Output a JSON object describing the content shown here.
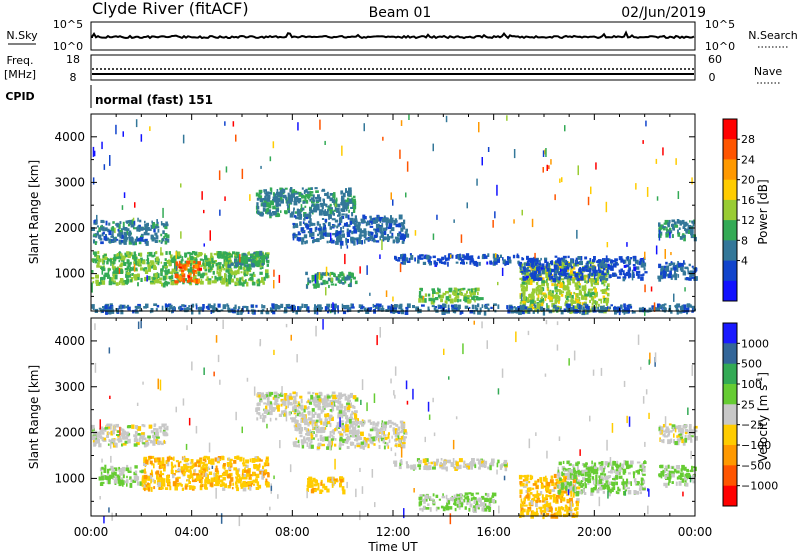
{
  "header": {
    "station": "Clyde River (fitACF)",
    "beam": "Beam 01",
    "date": "02/Jun/2019"
  },
  "panels": {
    "noise": {
      "left_label": "N.Sky",
      "right_label": "N.Search",
      "left_ticks": [
        "10^5",
        "10^0"
      ],
      "right_ticks": [
        "10^5",
        "10^0"
      ]
    },
    "freq": {
      "left_label_1": "Freq.",
      "left_label_2": "[MHz]",
      "right_label": "Nave",
      "left_ticks": [
        "18",
        "8"
      ],
      "right_ticks": [
        "60",
        "0"
      ]
    },
    "cpid": {
      "label": "CPID",
      "value": "normal (fast) 151"
    }
  },
  "x_axis": {
    "label": "Time UT",
    "ticks": [
      "00:00",
      "04:00",
      "08:00",
      "12:00",
      "16:00",
      "20:00",
      "00:00"
    ]
  },
  "power_colorbar": {
    "label": "Power [dB]",
    "ticks": [
      "28",
      "24",
      "20",
      "16",
      "12",
      "8",
      "4"
    ],
    "colors": [
      "#ff0000",
      "#ff5500",
      "#ff9900",
      "#ffcc00",
      "#99cc33",
      "#33aa55",
      "#337799",
      "#1144cc",
      "#1111ff"
    ]
  },
  "velocity_colorbar": {
    "label": "Velocity [m s",
    "label_sup": "-1",
    "label_close": "]",
    "ticks": [
      "1000",
      "500",
      "100",
      "25",
      "−25",
      "−100",
      "−500",
      "−1000"
    ],
    "colors": [
      "#1a1aff",
      "#336699",
      "#33aa55",
      "#66cc33",
      "#c8c8c8",
      "#ffcc00",
      "#ff9900",
      "#ff5500",
      "#ff0000"
    ]
  },
  "chart_data": [
    {
      "type": "heatmap",
      "name_from_colorbar": "Power [dB]",
      "ylabel": "Slant Range [km]",
      "xlabel": "Time UT",
      "xlim": [
        0,
        24
      ],
      "ylim": [
        180,
        4500
      ],
      "yticks": [
        1000,
        2000,
        3000,
        4000
      ],
      "color_range": [
        0,
        32
      ],
      "regions": [
        {
          "t0": 0.0,
          "t1": 3.0,
          "r0": 1700,
          "r1": 2200,
          "value": 9
        },
        {
          "t0": 0.0,
          "t1": 7.0,
          "r0": 800,
          "r1": 1500,
          "value": 14
        },
        {
          "t0": 3.3,
          "t1": 4.3,
          "r0": 850,
          "r1": 1300,
          "value": 26
        },
        {
          "t0": 5.0,
          "t1": 7.0,
          "r0": 1150,
          "r1": 1500,
          "value": 12
        },
        {
          "t0": 6.5,
          "t1": 10.5,
          "r0": 2300,
          "r1": 2900,
          "value": 10
        },
        {
          "t0": 8.5,
          "t1": 10.5,
          "r0": 750,
          "r1": 1050,
          "value": 12
        },
        {
          "t0": 8.0,
          "t1": 12.5,
          "r0": 1700,
          "r1": 2300,
          "value": 8
        },
        {
          "t0": 12.0,
          "t1": 17.0,
          "r0": 1250,
          "r1": 1450,
          "value": 6
        },
        {
          "t0": 13.0,
          "t1": 15.5,
          "r0": 400,
          "r1": 700,
          "value": 14
        },
        {
          "t0": 17.0,
          "t1": 20.5,
          "r0": 200,
          "r1": 1300,
          "value": 16
        },
        {
          "t0": 17.0,
          "t1": 22.0,
          "r0": 900,
          "r1": 1400,
          "value": 6
        },
        {
          "t0": 22.5,
          "t1": 24.0,
          "r0": 1800,
          "r1": 2200,
          "value": 10
        },
        {
          "t0": 22.5,
          "t1": 24.0,
          "r0": 900,
          "r1": 1300,
          "value": 8
        },
        {
          "t0": 0.0,
          "t1": 24.0,
          "r0": 180,
          "r1": 350,
          "value": 8
        }
      ]
    },
    {
      "type": "heatmap",
      "name_from_colorbar": "Velocity [m s-1]",
      "ylabel": "Slant Range [km]",
      "xlabel": "Time UT",
      "xlim": [
        0,
        24
      ],
      "ylim": [
        180,
        4500
      ],
      "yticks": [
        1000,
        2000,
        3000,
        4000
      ],
      "color_range": [
        -1000,
        1000
      ],
      "regions": [
        {
          "t0": 0.0,
          "t1": 3.0,
          "r0": 1750,
          "r1": 2200,
          "value": 0
        },
        {
          "t0": 0.3,
          "t1": 2.0,
          "r0": 900,
          "r1": 1300,
          "value": 150
        },
        {
          "t0": 2.0,
          "t1": 7.0,
          "r0": 800,
          "r1": 1500,
          "value": -250
        },
        {
          "t0": 6.5,
          "t1": 10.5,
          "r0": 2300,
          "r1": 2900,
          "value": 0
        },
        {
          "t0": 8.5,
          "t1": 10.0,
          "r0": 750,
          "r1": 1050,
          "value": -250
        },
        {
          "t0": 8.0,
          "t1": 12.5,
          "r0": 1700,
          "r1": 2300,
          "value": 0
        },
        {
          "t0": 12.0,
          "t1": 16.5,
          "r0": 1250,
          "r1": 1450,
          "value": 0
        },
        {
          "t0": 13.0,
          "t1": 16.0,
          "r0": 350,
          "r1": 700,
          "value": 150
        },
        {
          "t0": 17.0,
          "t1": 19.3,
          "r0": 200,
          "r1": 1100,
          "value": -250
        },
        {
          "t0": 18.5,
          "t1": 22.0,
          "r0": 700,
          "r1": 1400,
          "value": 150
        },
        {
          "t0": 22.5,
          "t1": 24.0,
          "r0": 1800,
          "r1": 2200,
          "value": 0
        },
        {
          "t0": 22.5,
          "t1": 24.0,
          "r0": 900,
          "r1": 1300,
          "value": 150
        }
      ]
    }
  ]
}
